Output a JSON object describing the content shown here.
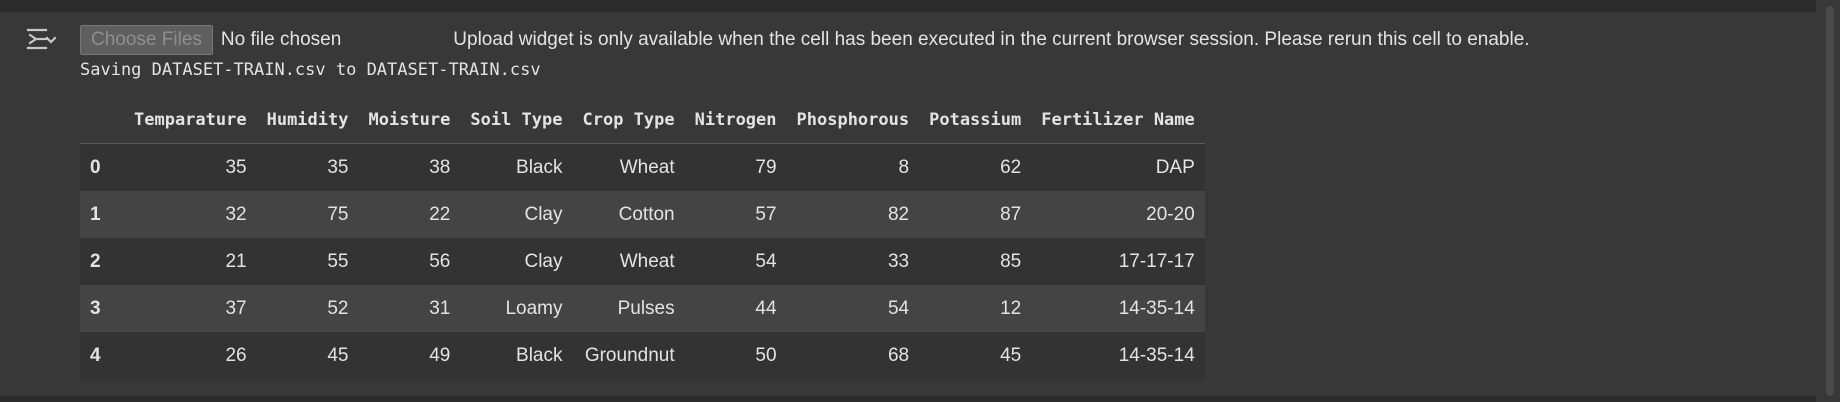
{
  "toggle": {
    "icon": "collapse-output-icon"
  },
  "upload": {
    "button_label": "Choose Files",
    "file_status": "No file chosen",
    "message": "Upload widget is only available when the cell has been executed in the current browser session. Please rerun this cell to enable."
  },
  "saving_text": "Saving DATASET-TRAIN.csv to DATASET-TRAIN.csv",
  "table": {
    "columns": [
      "",
      "Temparature",
      "Humidity",
      "Moisture",
      "Soil Type",
      "Crop Type",
      "Nitrogen",
      "Phosphorous",
      "Potassium",
      "Fertilizer Name"
    ],
    "rows": [
      [
        "0",
        "35",
        "35",
        "38",
        "Black",
        "Wheat",
        "79",
        "8",
        "62",
        "DAP"
      ],
      [
        "1",
        "32",
        "75",
        "22",
        "Clay",
        "Cotton",
        "57",
        "82",
        "87",
        "20-20"
      ],
      [
        "2",
        "21",
        "55",
        "56",
        "Clay",
        "Wheat",
        "54",
        "33",
        "85",
        "17-17-17"
      ],
      [
        "3",
        "37",
        "52",
        "31",
        "Loamy",
        "Pulses",
        "44",
        "54",
        "12",
        "14-35-14"
      ],
      [
        "4",
        "26",
        "45",
        "49",
        "Black",
        "Groundnut",
        "50",
        "68",
        "45",
        "14-35-14"
      ]
    ]
  }
}
